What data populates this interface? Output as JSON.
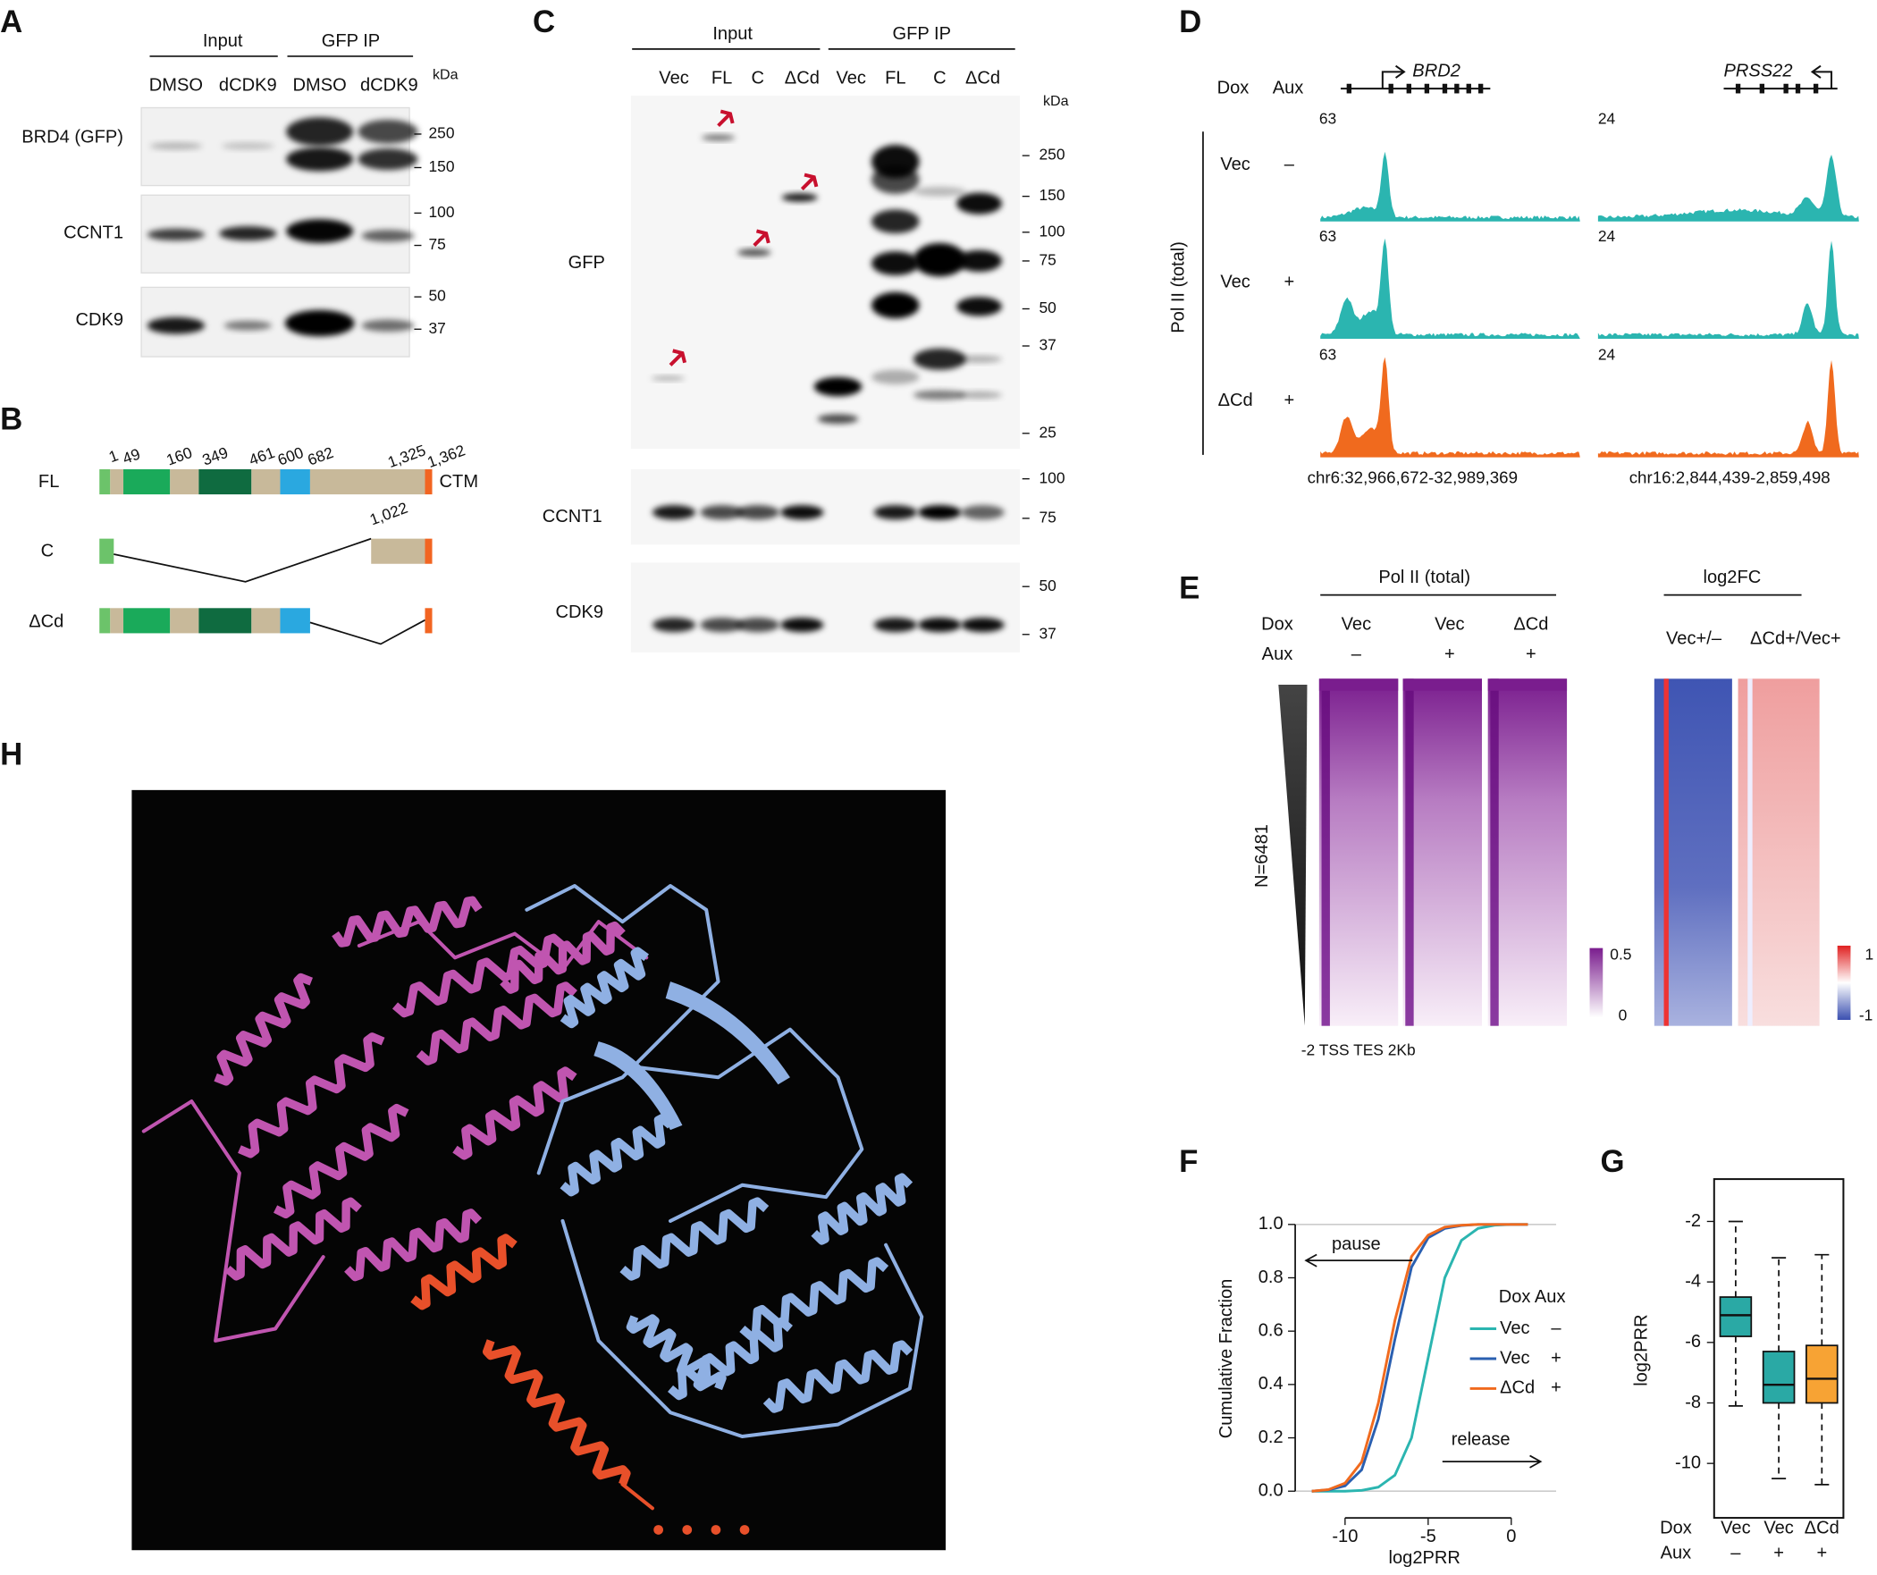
{
  "panels": {
    "A": {
      "label": "A",
      "groups": [
        "Input",
        "GFP IP"
      ],
      "lanes": [
        "DMSO",
        "dCDK9",
        "DMSO",
        "dCDK9"
      ],
      "unit": "kDa",
      "rows": [
        {
          "name": "BRD4 (GFP)",
          "markers": [
            "250",
            "150"
          ]
        },
        {
          "name": "CCNT1",
          "markers": [
            "100",
            "75"
          ]
        },
        {
          "name": "CDK9",
          "markers": [
            "50",
            "37"
          ]
        }
      ]
    },
    "B": {
      "label": "B",
      "constructs": [
        {
          "name": "FL",
          "positions": [
            "1",
            "49",
            "160",
            "349",
            "461",
            "600",
            "682",
            "1,325",
            "1,362"
          ],
          "end": "CTM"
        },
        {
          "name": "C",
          "positions": [
            "1,022"
          ]
        },
        {
          "name": "ΔCd"
        }
      ]
    },
    "C": {
      "label": "C",
      "groups": [
        "Input",
        "GFP IP"
      ],
      "lanes": [
        "Vec",
        "FL",
        "C",
        "ΔCd",
        "Vec",
        "FL",
        "C",
        "ΔCd"
      ],
      "unit": "kDa",
      "rows": [
        {
          "name": "GFP",
          "markers": [
            "250",
            "150",
            "100",
            "75",
            "50",
            "37",
            "25"
          ]
        },
        {
          "name": "CCNT1",
          "markers": [
            "100",
            "75"
          ]
        },
        {
          "name": "CDK9",
          "markers": [
            "50",
            "37"
          ]
        }
      ]
    },
    "D": {
      "label": "D",
      "row_headers": [
        "Dox",
        "Aux"
      ],
      "genes": [
        "BRD2",
        "PRSS22"
      ],
      "scales": [
        "63",
        "24"
      ],
      "rows": [
        {
          "dox": "Vec",
          "aux": "–"
        },
        {
          "dox": "Vec",
          "aux": "+"
        },
        {
          "dox": "ΔCd",
          "aux": "+"
        }
      ],
      "group_label": "Pol II (total)",
      "coordinates": [
        "chr6:32,966,672-32,989,369",
        "chr16:2,844,439-2,859,498"
      ]
    },
    "E": {
      "label": "E",
      "groups": [
        "Pol II (total)",
        "log2FC"
      ],
      "row_headers": [
        "Dox",
        "Aux"
      ],
      "columns": [
        {
          "dox": "Vec",
          "aux": "–"
        },
        {
          "dox": "Vec",
          "aux": "+"
        },
        {
          "dox": "ΔCd",
          "aux": "+"
        }
      ],
      "ratios": [
        "Vec+/–",
        "ΔCd+/Vec+"
      ],
      "n_label": "N=6481",
      "colorbar_signal": [
        "0.5",
        "0"
      ],
      "colorbar_fc": [
        "1",
        "-1"
      ],
      "x_axis": "-2 TSS TES 2Kb"
    },
    "H": {
      "label": "H"
    }
  },
  "chart_data": [
    {
      "type": "line",
      "label": "F",
      "x_label": "log2PRR",
      "y_label": "Cumulative Fraction",
      "x": [
        -12,
        -11,
        -10,
        -9,
        -8,
        -7,
        -6,
        -5,
        -4,
        -3,
        -2,
        -1,
        0,
        1
      ],
      "series": [
        {
          "name": "Vec",
          "aux": "–",
          "color": "#2bb5b0",
          "values": [
            0,
            0,
            0,
            0.003,
            0.015,
            0.06,
            0.2,
            0.5,
            0.8,
            0.94,
            0.985,
            0.997,
            1,
            1
          ]
        },
        {
          "name": "Vec",
          "aux": "+",
          "color": "#2a5fb0",
          "values": [
            0,
            0.005,
            0.02,
            0.08,
            0.27,
            0.57,
            0.84,
            0.95,
            0.985,
            0.996,
            1,
            1,
            1,
            1
          ]
        },
        {
          "name": "ΔCd",
          "aux": "+",
          "color": "#f06a1e",
          "values": [
            0,
            0.006,
            0.03,
            0.11,
            0.33,
            0.64,
            0.88,
            0.96,
            0.99,
            0.997,
            1,
            1,
            1,
            1
          ]
        }
      ],
      "legend_title": "Dox Aux",
      "annotations": [
        "pause",
        "release"
      ],
      "xlim": [
        -13,
        2.7
      ],
      "ylim": [
        -0.1,
        1.17
      ],
      "xticks": [
        -10,
        -5,
        0
      ],
      "yticks": [
        {
          "value": 0,
          "label": "0.0"
        },
        {
          "value": 0.2,
          "label": "0.2"
        },
        {
          "value": 0.4,
          "label": "0.4"
        },
        {
          "value": 0.6,
          "label": "0.6"
        },
        {
          "value": 0.8,
          "label": "0.8"
        },
        {
          "value": 1,
          "label": "1.0"
        }
      ],
      "reference_lines": [
        0,
        1
      ]
    },
    {
      "type": "box",
      "label": "G",
      "y_label": "log2PRR",
      "categories": [
        "Vec",
        "Vec",
        "ΔCd"
      ],
      "aux": [
        "–",
        "+",
        "+"
      ],
      "row_labels": [
        "Dox",
        "Aux"
      ],
      "boxes": [
        {
          "whislo": -8.1,
          "q1": -5.8,
          "med": -5.1,
          "q3": -4.5,
          "whishi": -2.0,
          "color": "#2aa9a5"
        },
        {
          "whislo": -10.5,
          "q1": -8.0,
          "med": -7.4,
          "q3": -6.3,
          "whishi": -3.2,
          "color": "#2aa9a5"
        },
        {
          "whislo": -10.7,
          "q1": -8.0,
          "med": -7.2,
          "q3": -6.1,
          "whishi": -3.1,
          "color": "#f7a334"
        }
      ],
      "ylim": [
        -11.8,
        -0.6
      ],
      "yticks": [
        -2,
        -4,
        -6,
        -8,
        -10
      ]
    }
  ]
}
